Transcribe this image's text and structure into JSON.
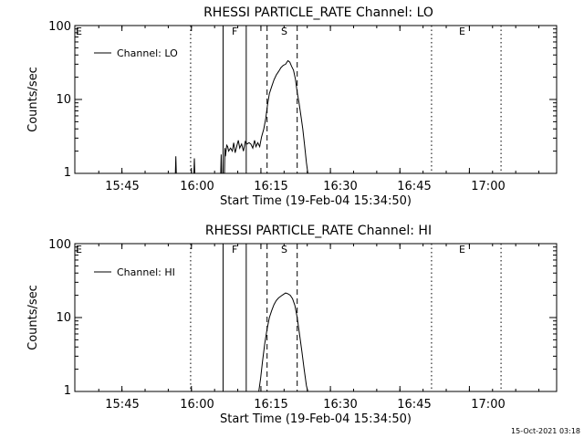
{
  "footer": {
    "timestamp": "15-Oct-2021 03:18"
  },
  "chart_data": [
    {
      "type": "line",
      "title": "RHESSI PARTICLE_RATE Channel: LO",
      "xlabel": "Start Time (19-Feb-04 15:34:50)",
      "ylabel": "Counts/sec",
      "y_scale": "log",
      "ylim": [
        1,
        100
      ],
      "y_ticks": [
        "1",
        "10",
        "100"
      ],
      "x_ticks": [
        "15:45",
        "16:00",
        "16:15",
        "16:30",
        "16:45",
        "17:00"
      ],
      "xlim_minutes": [
        0,
        104
      ],
      "legend": {
        "entries": [
          "Channel: LO"
        ],
        "position": "top-left"
      },
      "markers": [
        {
          "label": "E",
          "t": 0,
          "style": "dotted"
        },
        {
          "label": "",
          "t": 25,
          "style": "dotted"
        },
        {
          "label": "F",
          "t": 32,
          "style": "solid"
        },
        {
          "label": "",
          "t": 37,
          "style": "solid"
        },
        {
          "label": "S",
          "t": 41.5,
          "style": "dashed"
        },
        {
          "label": "",
          "t": 48,
          "style": "dashed"
        },
        {
          "label": "E",
          "t": 77,
          "style": "dotted"
        },
        {
          "label": "",
          "t": 92,
          "style": "dotted"
        }
      ],
      "series": [
        {
          "name": "Channel: LO",
          "points": [
            [
              21.7,
              1
            ],
            [
              21.8,
              1.7
            ],
            [
              21.9,
              1
            ],
            [
              25.7,
              1
            ],
            [
              25.8,
              1.6
            ],
            [
              25.9,
              1
            ],
            [
              31.5,
              1
            ],
            [
              31.6,
              1.8
            ],
            [
              31.7,
              1
            ],
            [
              32.3,
              1
            ],
            [
              32.4,
              2.2
            ],
            [
              32.5,
              1.7
            ],
            [
              32.8,
              2.4
            ],
            [
              33,
              2.3
            ],
            [
              33.2,
              2
            ],
            [
              33.6,
              2.2
            ],
            [
              34,
              2
            ],
            [
              34.3,
              2.6
            ],
            [
              34.6,
              1.9
            ],
            [
              35,
              2.4
            ],
            [
              35.3,
              2.8
            ],
            [
              35.6,
              2.2
            ],
            [
              36,
              2.5
            ],
            [
              36.4,
              2
            ],
            [
              36.8,
              2.7
            ],
            [
              37.2,
              2.5
            ],
            [
              37.6,
              2.6
            ],
            [
              38,
              2.5
            ],
            [
              38.4,
              2.2
            ],
            [
              38.8,
              2.8
            ],
            [
              39.1,
              2.3
            ],
            [
              39.5,
              2.6
            ],
            [
              39.9,
              2.3
            ],
            [
              40.3,
              3.1
            ],
            [
              40.8,
              4
            ],
            [
              41.2,
              5.5
            ],
            [
              41.6,
              8.5
            ],
            [
              42,
              12
            ],
            [
              42.5,
              15
            ],
            [
              43,
              18.5
            ],
            [
              43.5,
              21.5
            ],
            [
              44,
              24
            ],
            [
              44.5,
              27
            ],
            [
              45,
              29
            ],
            [
              45.5,
              30
            ],
            [
              46,
              33.5
            ],
            [
              46.4,
              32
            ],
            [
              46.8,
              28
            ],
            [
              47.2,
              25
            ],
            [
              47.6,
              19
            ],
            [
              48,
              12.5
            ],
            [
              48.4,
              9
            ],
            [
              48.8,
              6
            ],
            [
              49.2,
              4
            ],
            [
              49.6,
              2.4
            ],
            [
              50,
              1.4
            ],
            [
              50.3,
              1
            ]
          ]
        }
      ]
    },
    {
      "type": "line",
      "title": "RHESSI PARTICLE_RATE Channel: HI",
      "xlabel": "Start Time (19-Feb-04 15:34:50)",
      "ylabel": "Counts/sec",
      "y_scale": "log",
      "ylim": [
        1,
        100
      ],
      "y_ticks": [
        "1",
        "10",
        "100"
      ],
      "x_ticks": [
        "15:45",
        "16:00",
        "16:15",
        "16:30",
        "16:45",
        "17:00"
      ],
      "xlim_minutes": [
        0,
        104
      ],
      "legend": {
        "entries": [
          "Channel: HI"
        ],
        "position": "top-left"
      },
      "markers": [
        {
          "label": "E",
          "t": 0,
          "style": "dotted"
        },
        {
          "label": "",
          "t": 25,
          "style": "dotted"
        },
        {
          "label": "F",
          "t": 32,
          "style": "solid"
        },
        {
          "label": "",
          "t": 37,
          "style": "solid"
        },
        {
          "label": "S",
          "t": 41.5,
          "style": "dashed"
        },
        {
          "label": "",
          "t": 48,
          "style": "dashed"
        },
        {
          "label": "E",
          "t": 77,
          "style": "dotted"
        },
        {
          "label": "",
          "t": 92,
          "style": "dotted"
        }
      ],
      "series": [
        {
          "name": "Channel: HI",
          "points": [
            [
              39.7,
              1
            ],
            [
              40.1,
              1.5
            ],
            [
              40.5,
              2.5
            ],
            [
              41,
              4.5
            ],
            [
              41.5,
              7
            ],
            [
              42,
              10
            ],
            [
              42.5,
              12.5
            ],
            [
              43,
              15
            ],
            [
              43.5,
              17
            ],
            [
              44,
              18.5
            ],
            [
              44.5,
              19.5
            ],
            [
              45,
              20.5
            ],
            [
              45.5,
              21.5
            ],
            [
              46,
              21
            ],
            [
              46.5,
              20
            ],
            [
              47,
              18
            ],
            [
              47.5,
              14.5
            ],
            [
              48,
              10
            ],
            [
              48.5,
              6
            ],
            [
              49,
              3.5
            ],
            [
              49.5,
              2
            ],
            [
              50,
              1.2
            ],
            [
              50.3,
              1
            ]
          ]
        }
      ]
    }
  ]
}
